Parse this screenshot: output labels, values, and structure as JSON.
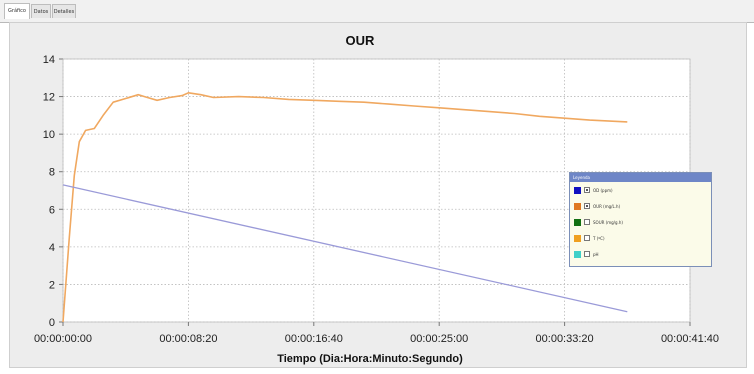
{
  "tabs": [
    {
      "label": "Gráfico",
      "active": true
    },
    {
      "label": "Datos",
      "active": false
    },
    {
      "label": "Detalles",
      "active": false
    }
  ],
  "chart_data": {
    "type": "line",
    "title": "OUR",
    "xlabel": "Tiempo (Dia:Hora:Minuto:Segundo)",
    "ylabel": "",
    "ylim": [
      0,
      14
    ],
    "yticks": [
      0,
      2,
      4,
      6,
      8,
      10,
      12,
      14
    ],
    "xlim_seconds": [
      0,
      2500
    ],
    "xticks": [
      "00:00:00:00",
      "00:00:08:20",
      "00:00:16:40",
      "00:00:25:00",
      "00:00:33:20",
      "00:00:41:40"
    ],
    "grid": true,
    "series": [
      {
        "name": "OUR (mg/L.h)",
        "color": "#f0a860",
        "x": [
          "00:00:00:00",
          "00:00:00:25",
          "00:00:00:45",
          "00:00:01:05",
          "00:00:01:30",
          "00:00:02:05",
          "00:00:02:40",
          "00:00:03:20",
          "00:00:04:10",
          "00:00:05:00",
          "00:00:05:25",
          "00:00:06:15",
          "00:00:07:05",
          "00:00:07:55",
          "00:00:08:20",
          "00:00:09:10",
          "00:00:10:00",
          "00:00:11:40",
          "00:00:13:20",
          "00:00:15:00",
          "00:00:16:40",
          "00:00:18:20",
          "00:00:20:00",
          "00:00:21:40",
          "00:00:23:20",
          "00:00:25:00",
          "00:00:26:40",
          "00:00:28:20",
          "00:00:30:00",
          "00:00:31:40",
          "00:00:33:20",
          "00:00:35:00",
          "00:00:37:30"
        ],
        "values": [
          0,
          4.5,
          7.8,
          9.6,
          10.2,
          10.3,
          11.0,
          11.7,
          11.9,
          12.1,
          12.0,
          11.8,
          11.95,
          12.05,
          12.2,
          12.1,
          11.95,
          12.0,
          11.95,
          11.85,
          11.8,
          11.75,
          11.7,
          11.6,
          11.5,
          11.4,
          11.3,
          11.2,
          11.1,
          10.95,
          10.85,
          10.75,
          10.65
        ]
      },
      {
        "name": "OD (ppm)",
        "color": "#9a9ad8",
        "x": [
          "00:00:00:00",
          "00:00:37:30"
        ],
        "values": [
          7.3,
          0.55
        ]
      }
    ],
    "legend": {
      "title": "Leyenda",
      "placement": "right",
      "entries": [
        {
          "label": "OD (ppm)",
          "color": "#1010c0",
          "checked": true
        },
        {
          "label": "OUR (mg/L.h)",
          "color": "#e07820",
          "checked": true
        },
        {
          "label": "SOUR (mg/g.h)",
          "color": "#127012",
          "checked": false
        },
        {
          "label": "T (ºC)",
          "color": "#f0a020",
          "checked": false
        },
        {
          "label": "pH",
          "color": "#40d0c8",
          "checked": false
        }
      ]
    }
  }
}
